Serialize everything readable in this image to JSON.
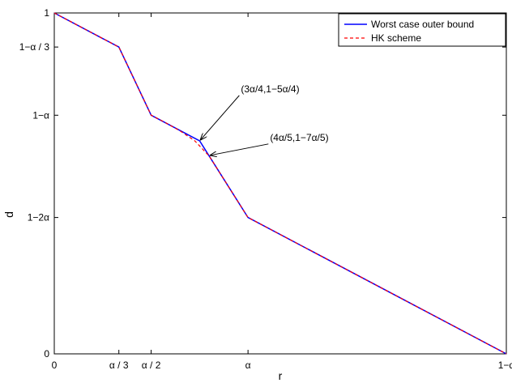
{
  "chart_data": {
    "type": "line",
    "alpha": 0.3,
    "xlabel": "r",
    "ylabel": "d",
    "xlim": [
      0,
      0.7
    ],
    "ylim": [
      0,
      1
    ],
    "grid": false,
    "legend_position": "top-right",
    "x_ticks": [
      {
        "value": 0,
        "label": "0"
      },
      {
        "value": 0.1,
        "label": "α / 3"
      },
      {
        "value": 0.15,
        "label": "α / 2"
      },
      {
        "value": 0.3,
        "label": "α"
      },
      {
        "value": 0.7,
        "label": "1−α"
      }
    ],
    "y_ticks": [
      {
        "value": 0,
        "label": "0"
      },
      {
        "value": 0.4,
        "label": "1−2α"
      },
      {
        "value": 0.7,
        "label": "1−α"
      },
      {
        "value": 0.9,
        "label": "1−α / 3"
      },
      {
        "value": 1,
        "label": "1"
      }
    ],
    "series": [
      {
        "name": "Worst case outer bound",
        "color": "#0000ff",
        "style": "solid",
        "x": [
          0,
          0.1,
          0.15,
          0.225,
          0.24,
          0.3,
          0.7
        ],
        "y": [
          1,
          0.9,
          0.7,
          0.625,
          0.58,
          0.4,
          0
        ]
      },
      {
        "name": "HK scheme",
        "color": "#ff0000",
        "style": "dashed",
        "x": [
          0,
          0.1,
          0.15,
          0.1725,
          0.195,
          0.2175,
          0.24,
          0.3,
          0.7
        ],
        "y": [
          1,
          0.9,
          0.7,
          0.678,
          0.654,
          0.625,
          0.58,
          0.4,
          0
        ]
      }
    ],
    "annotations": [
      {
        "text": "(3α/4,1−5α/4)",
        "x": 0.225,
        "y": 0.625
      },
      {
        "text": "(4α/5,1−7α/5)",
        "x": 0.24,
        "y": 0.58
      }
    ]
  }
}
